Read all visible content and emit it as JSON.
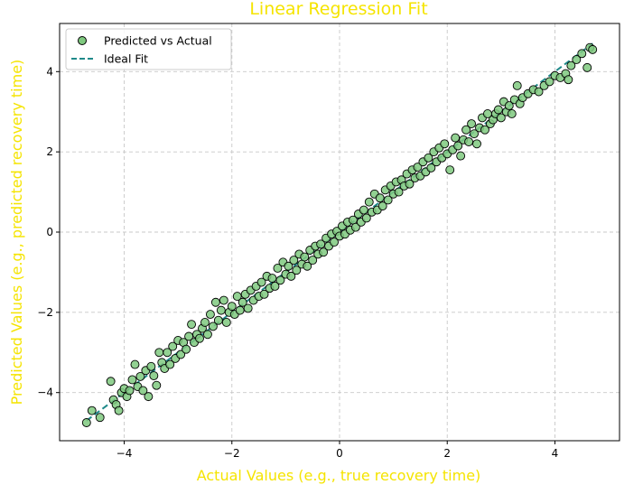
{
  "chart_data": {
    "type": "scatter",
    "title": "Linear Regression Fit",
    "xlabel": "Actual Values (e.g., true recovery time)",
    "ylabel": "Predicted Values (e.g., predicted recovery time)",
    "xlim": [
      -5.2,
      5.2
    ],
    "ylim": [
      -5.2,
      5.2
    ],
    "xticks": [
      -4,
      -2,
      0,
      2,
      4
    ],
    "yticks": [
      -4,
      -2,
      0,
      2,
      4
    ],
    "grid": true,
    "legend_position": "upper-left",
    "colors": {
      "title": "#f5e400",
      "axis_titles": "#f5e400",
      "points_fill": "#7fc97f",
      "points_edge": "#000000",
      "ideal_line": "#1f8a8a",
      "grid": "#c8c8c8"
    },
    "series": [
      {
        "name": "Predicted vs Actual",
        "kind": "scatter",
        "points": [
          [
            -4.7,
            -4.75
          ],
          [
            -4.6,
            -4.45
          ],
          [
            -4.45,
            -4.62
          ],
          [
            -4.25,
            -3.72
          ],
          [
            -4.2,
            -4.18
          ],
          [
            -4.15,
            -4.3
          ],
          [
            -4.1,
            -4.45
          ],
          [
            -4.05,
            -4.0
          ],
          [
            -4.0,
            -3.9
          ],
          [
            -3.95,
            -4.1
          ],
          [
            -3.9,
            -3.95
          ],
          [
            -3.85,
            -3.68
          ],
          [
            -3.8,
            -3.3
          ],
          [
            -3.75,
            -3.85
          ],
          [
            -3.7,
            -3.6
          ],
          [
            -3.65,
            -3.95
          ],
          [
            -3.6,
            -3.45
          ],
          [
            -3.55,
            -4.1
          ],
          [
            -3.5,
            -3.35
          ],
          [
            -3.45,
            -3.58
          ],
          [
            -3.4,
            -3.82
          ],
          [
            -3.35,
            -3.0
          ],
          [
            -3.3,
            -3.25
          ],
          [
            -3.25,
            -3.4
          ],
          [
            -3.2,
            -3.0
          ],
          [
            -3.15,
            -3.3
          ],
          [
            -3.1,
            -2.85
          ],
          [
            -3.05,
            -3.15
          ],
          [
            -3.0,
            -2.7
          ],
          [
            -2.95,
            -3.05
          ],
          [
            -2.9,
            -2.75
          ],
          [
            -2.85,
            -2.92
          ],
          [
            -2.8,
            -2.6
          ],
          [
            -2.75,
            -2.3
          ],
          [
            -2.7,
            -2.75
          ],
          [
            -2.65,
            -2.55
          ],
          [
            -2.6,
            -2.65
          ],
          [
            -2.55,
            -2.4
          ],
          [
            -2.5,
            -2.25
          ],
          [
            -2.45,
            -2.55
          ],
          [
            -2.4,
            -2.05
          ],
          [
            -2.35,
            -2.35
          ],
          [
            -2.3,
            -1.75
          ],
          [
            -2.25,
            -2.2
          ],
          [
            -2.2,
            -1.95
          ],
          [
            -2.15,
            -1.7
          ],
          [
            -2.1,
            -2.25
          ],
          [
            -2.05,
            -2.0
          ],
          [
            -2.0,
            -1.85
          ],
          [
            -1.95,
            -2.05
          ],
          [
            -1.9,
            -1.6
          ],
          [
            -1.85,
            -1.95
          ],
          [
            -1.8,
            -1.75
          ],
          [
            -1.75,
            -1.55
          ],
          [
            -1.7,
            -1.9
          ],
          [
            -1.65,
            -1.45
          ],
          [
            -1.6,
            -1.7
          ],
          [
            -1.55,
            -1.35
          ],
          [
            -1.5,
            -1.6
          ],
          [
            -1.45,
            -1.25
          ],
          [
            -1.4,
            -1.55
          ],
          [
            -1.35,
            -1.1
          ],
          [
            -1.3,
            -1.4
          ],
          [
            -1.25,
            -1.15
          ],
          [
            -1.2,
            -1.35
          ],
          [
            -1.15,
            -0.9
          ],
          [
            -1.1,
            -1.2
          ],
          [
            -1.05,
            -0.75
          ],
          [
            -1.0,
            -1.05
          ],
          [
            -0.95,
            -0.85
          ],
          [
            -0.9,
            -1.1
          ],
          [
            -0.85,
            -0.7
          ],
          [
            -0.8,
            -0.95
          ],
          [
            -0.75,
            -0.55
          ],
          [
            -0.7,
            -0.8
          ],
          [
            -0.65,
            -0.62
          ],
          [
            -0.6,
            -0.85
          ],
          [
            -0.55,
            -0.45
          ],
          [
            -0.5,
            -0.7
          ],
          [
            -0.45,
            -0.35
          ],
          [
            -0.4,
            -0.55
          ],
          [
            -0.35,
            -0.3
          ],
          [
            -0.3,
            -0.5
          ],
          [
            -0.25,
            -0.15
          ],
          [
            -0.2,
            -0.35
          ],
          [
            -0.15,
            -0.05
          ],
          [
            -0.1,
            -0.25
          ],
          [
            -0.05,
            0.02
          ],
          [
            0.0,
            -0.1
          ],
          [
            0.05,
            0.15
          ],
          [
            0.1,
            -0.05
          ],
          [
            0.15,
            0.25
          ],
          [
            0.2,
            0.05
          ],
          [
            0.25,
            0.3
          ],
          [
            0.3,
            0.12
          ],
          [
            0.35,
            0.45
          ],
          [
            0.4,
            0.25
          ],
          [
            0.45,
            0.55
          ],
          [
            0.5,
            0.35
          ],
          [
            0.55,
            0.75
          ],
          [
            0.6,
            0.5
          ],
          [
            0.65,
            0.95
          ],
          [
            0.7,
            0.55
          ],
          [
            0.75,
            0.85
          ],
          [
            0.8,
            0.65
          ],
          [
            0.85,
            1.05
          ],
          [
            0.9,
            0.8
          ],
          [
            0.95,
            1.15
          ],
          [
            1.0,
            0.95
          ],
          [
            1.05,
            1.25
          ],
          [
            1.1,
            1.0
          ],
          [
            1.15,
            1.3
          ],
          [
            1.2,
            1.15
          ],
          [
            1.25,
            1.45
          ],
          [
            1.3,
            1.2
          ],
          [
            1.35,
            1.55
          ],
          [
            1.4,
            1.35
          ],
          [
            1.45,
            1.62
          ],
          [
            1.5,
            1.4
          ],
          [
            1.55,
            1.75
          ],
          [
            1.6,
            1.5
          ],
          [
            1.65,
            1.85
          ],
          [
            1.7,
            1.6
          ],
          [
            1.75,
            2.0
          ],
          [
            1.8,
            1.75
          ],
          [
            1.85,
            2.1
          ],
          [
            1.9,
            1.85
          ],
          [
            1.95,
            2.2
          ],
          [
            2.0,
            1.95
          ],
          [
            2.05,
            1.55
          ],
          [
            2.1,
            2.05
          ],
          [
            2.15,
            2.35
          ],
          [
            2.2,
            2.15
          ],
          [
            2.25,
            1.9
          ],
          [
            2.3,
            2.3
          ],
          [
            2.35,
            2.55
          ],
          [
            2.4,
            2.25
          ],
          [
            2.45,
            2.7
          ],
          [
            2.5,
            2.45
          ],
          [
            2.55,
            2.2
          ],
          [
            2.6,
            2.6
          ],
          [
            2.65,
            2.85
          ],
          [
            2.7,
            2.55
          ],
          [
            2.75,
            2.95
          ],
          [
            2.8,
            2.7
          ],
          [
            2.85,
            2.8
          ],
          [
            2.9,
            2.95
          ],
          [
            2.95,
            3.05
          ],
          [
            3.0,
            2.85
          ],
          [
            3.05,
            3.25
          ],
          [
            3.1,
            3.0
          ],
          [
            3.15,
            3.15
          ],
          [
            3.2,
            2.95
          ],
          [
            3.25,
            3.3
          ],
          [
            3.3,
            3.65
          ],
          [
            3.35,
            3.2
          ],
          [
            3.4,
            3.35
          ],
          [
            3.5,
            3.45
          ],
          [
            3.6,
            3.55
          ],
          [
            3.7,
            3.5
          ],
          [
            3.8,
            3.65
          ],
          [
            3.9,
            3.75
          ],
          [
            4.0,
            3.9
          ],
          [
            4.1,
            3.85
          ],
          [
            4.2,
            3.95
          ],
          [
            4.25,
            3.8
          ],
          [
            4.3,
            4.15
          ],
          [
            4.4,
            4.3
          ],
          [
            4.5,
            4.45
          ],
          [
            4.6,
            4.1
          ],
          [
            4.65,
            4.6
          ],
          [
            4.7,
            4.55
          ]
        ]
      },
      {
        "name": "Ideal Fit",
        "kind": "line",
        "points": [
          [
            -4.7,
            -4.7
          ],
          [
            4.7,
            4.7
          ]
        ]
      }
    ]
  }
}
